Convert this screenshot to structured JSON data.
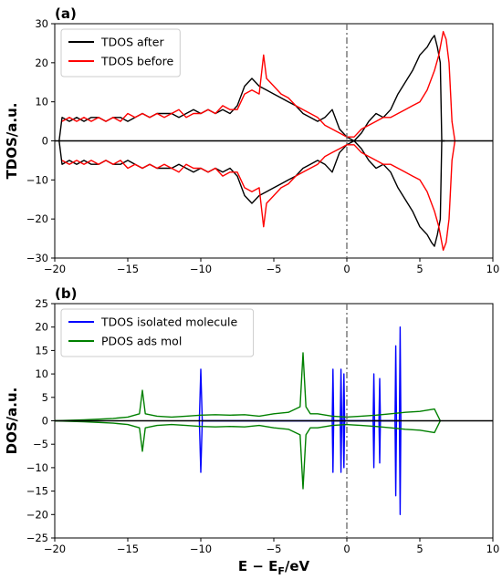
{
  "figure": {
    "panel_a_tag": "(a)",
    "panel_b_tag": "(b)"
  },
  "chart_data": [
    {
      "type": "line",
      "panel": "(a)",
      "ylabel": "TDOS/a.u.",
      "xlabel": "",
      "xlim": [
        -20,
        10
      ],
      "ylim": [
        -30,
        30
      ],
      "xticks": [
        -20,
        -15,
        -10,
        -5,
        0,
        5,
        10
      ],
      "yticks": [
        -30,
        -20,
        -10,
        0,
        10,
        20,
        30
      ],
      "legend_position": "top-left",
      "fermi_line_x": 0,
      "mirrored": true,
      "series": [
        {
          "name": "TDOS after",
          "color": "#000000",
          "x": [
            -19.7,
            -19.5,
            -19,
            -18.5,
            -18,
            -17.5,
            -17,
            -16.5,
            -16,
            -15.5,
            -15,
            -14.5,
            -14,
            -13.5,
            -13,
            -12.5,
            -12,
            -11.5,
            -11,
            -10.5,
            -10,
            -9.5,
            -9,
            -8.5,
            -8,
            -7.5,
            -7,
            -6.5,
            -6,
            -5.5,
            -5,
            -4.5,
            -4,
            -3.5,
            -3,
            -2.5,
            -2,
            -1.5,
            -1,
            -0.5,
            0,
            0.5,
            1,
            1.5,
            2,
            2.5,
            3,
            3.5,
            4,
            4.5,
            5,
            5.5,
            5.8,
            6,
            6.2,
            6.4,
            6.5,
            6.7
          ],
          "y": [
            0,
            6,
            5,
            6,
            5,
            6,
            6,
            5,
            6,
            6,
            5,
            6,
            7,
            6,
            7,
            7,
            7,
            6,
            7,
            8,
            7,
            8,
            7,
            8,
            7,
            9,
            14,
            16,
            14,
            13,
            12,
            11,
            10,
            9,
            7,
            6,
            5,
            6,
            8,
            3,
            1,
            0,
            2,
            5,
            7,
            6,
            8,
            12,
            15,
            18,
            22,
            24,
            26,
            27,
            24,
            20,
            0,
            0
          ]
        },
        {
          "name": "TDOS before",
          "color": "#ff0000",
          "x": [
            -19.5,
            -19,
            -18.5,
            -18,
            -17.5,
            -17,
            -16.5,
            -16,
            -15.5,
            -15,
            -14.5,
            -14,
            -13.5,
            -13,
            -12.5,
            -12,
            -11.5,
            -11,
            -10.5,
            -10,
            -9.5,
            -9,
            -8.5,
            -8,
            -7.5,
            -7,
            -6.5,
            -6,
            -5.7,
            -5.5,
            -5,
            -4.5,
            -4,
            -3.5,
            -3,
            -2.5,
            -2,
            -1.5,
            -1,
            -0.5,
            0,
            0.5,
            1,
            1.5,
            2,
            2.5,
            3,
            3.5,
            4,
            4.5,
            5,
            5.5,
            6,
            6.3,
            6.6,
            6.8,
            7,
            7.2,
            7.4
          ],
          "y": [
            5,
            6,
            5,
            6,
            5,
            6,
            5,
            6,
            5,
            7,
            6,
            7,
            6,
            7,
            6,
            7,
            8,
            6,
            7,
            7,
            8,
            7,
            9,
            8,
            8,
            12,
            13,
            12,
            22,
            16,
            14,
            12,
            11,
            9,
            8,
            7,
            6,
            4,
            3,
            2,
            1,
            1,
            3,
            4,
            5,
            6,
            6,
            7,
            8,
            9,
            10,
            13,
            18,
            22,
            28,
            26,
            20,
            5,
            0
          ]
        }
      ]
    },
    {
      "type": "line",
      "panel": "(b)",
      "ylabel": "DOS/a.u.",
      "xlabel": "E − E_F/eV",
      "xlim": [
        -20,
        10
      ],
      "ylim": [
        -25,
        25
      ],
      "xticks": [
        -20,
        -15,
        -10,
        -5,
        0,
        5,
        10
      ],
      "yticks": [
        -25,
        -20,
        -15,
        -10,
        -5,
        0,
        5,
        10,
        15,
        20,
        25
      ],
      "legend_position": "top-left",
      "fermi_line_x": 0,
      "mirrored": true,
      "series": [
        {
          "name": "TDOS isolated molecule",
          "color": "#0000ff",
          "x": [
            -10.1,
            -10.0,
            -9.9,
            -1.0,
            -0.95,
            -0.9,
            -0.45,
            -0.4,
            -0.35,
            -0.25,
            -0.2,
            -0.15,
            1.8,
            1.85,
            1.9,
            2.2,
            2.25,
            2.3,
            3.3,
            3.35,
            3.4,
            3.6,
            3.65,
            3.7
          ],
          "y": [
            0,
            11,
            0,
            0,
            11,
            0,
            0,
            11,
            0,
            0,
            10,
            0,
            0,
            10,
            0,
            0,
            9,
            0,
            0,
            16,
            0,
            0,
            20,
            0
          ]
        },
        {
          "name": "PDOS ads mol",
          "color": "#008000",
          "x": [
            -20,
            -18,
            -16,
            -15,
            -14.2,
            -14,
            -13.8,
            -13,
            -12,
            -11,
            -10,
            -9,
            -8,
            -7,
            -6,
            -5,
            -4,
            -3.2,
            -3,
            -2.8,
            -2.5,
            -2,
            -1,
            0,
            1,
            2,
            3,
            4,
            5,
            6,
            6.4
          ],
          "y": [
            0,
            0.2,
            0.5,
            0.8,
            1.5,
            6.5,
            1.5,
            1,
            0.8,
            1,
            1.2,
            1.3,
            1.2,
            1.3,
            1,
            1.5,
            1.8,
            3,
            14.5,
            3,
            1.5,
            1.5,
            1,
            0.8,
            1,
            1.2,
            1.5,
            1.8,
            2,
            2.5,
            0
          ]
        }
      ]
    }
  ]
}
